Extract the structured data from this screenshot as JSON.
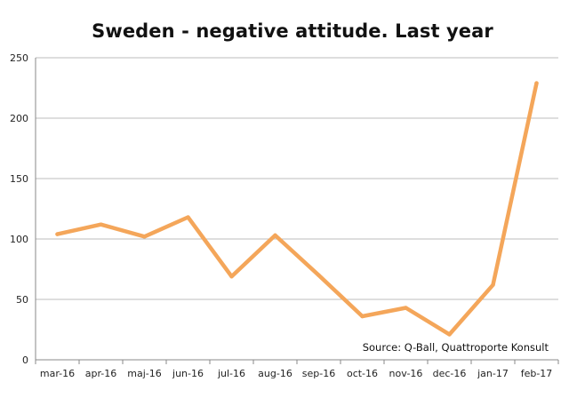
{
  "chart_data": {
    "type": "line",
    "title": "Sweden - negative attitude. Last year",
    "xlabel": "",
    "ylabel": "",
    "categories": [
      "mar-16",
      "apr-16",
      "maj-16",
      "jun-16",
      "jul-16",
      "aug-16",
      "sep-16",
      "oct-16",
      "nov-16",
      "dec-16",
      "jan-17",
      "feb-17"
    ],
    "series": [
      {
        "values": [
          104,
          112,
          102,
          118,
          69,
          103,
          70,
          36,
          43,
          21,
          62,
          229
        ],
        "color": "#f4a65a"
      }
    ],
    "ylim": [
      0,
      250
    ],
    "yticks": [
      0,
      50,
      100,
      150,
      200,
      250
    ],
    "grid": true,
    "legend": "none",
    "annotation": "Source: Q-Ball, Quattroporte Konsult"
  }
}
